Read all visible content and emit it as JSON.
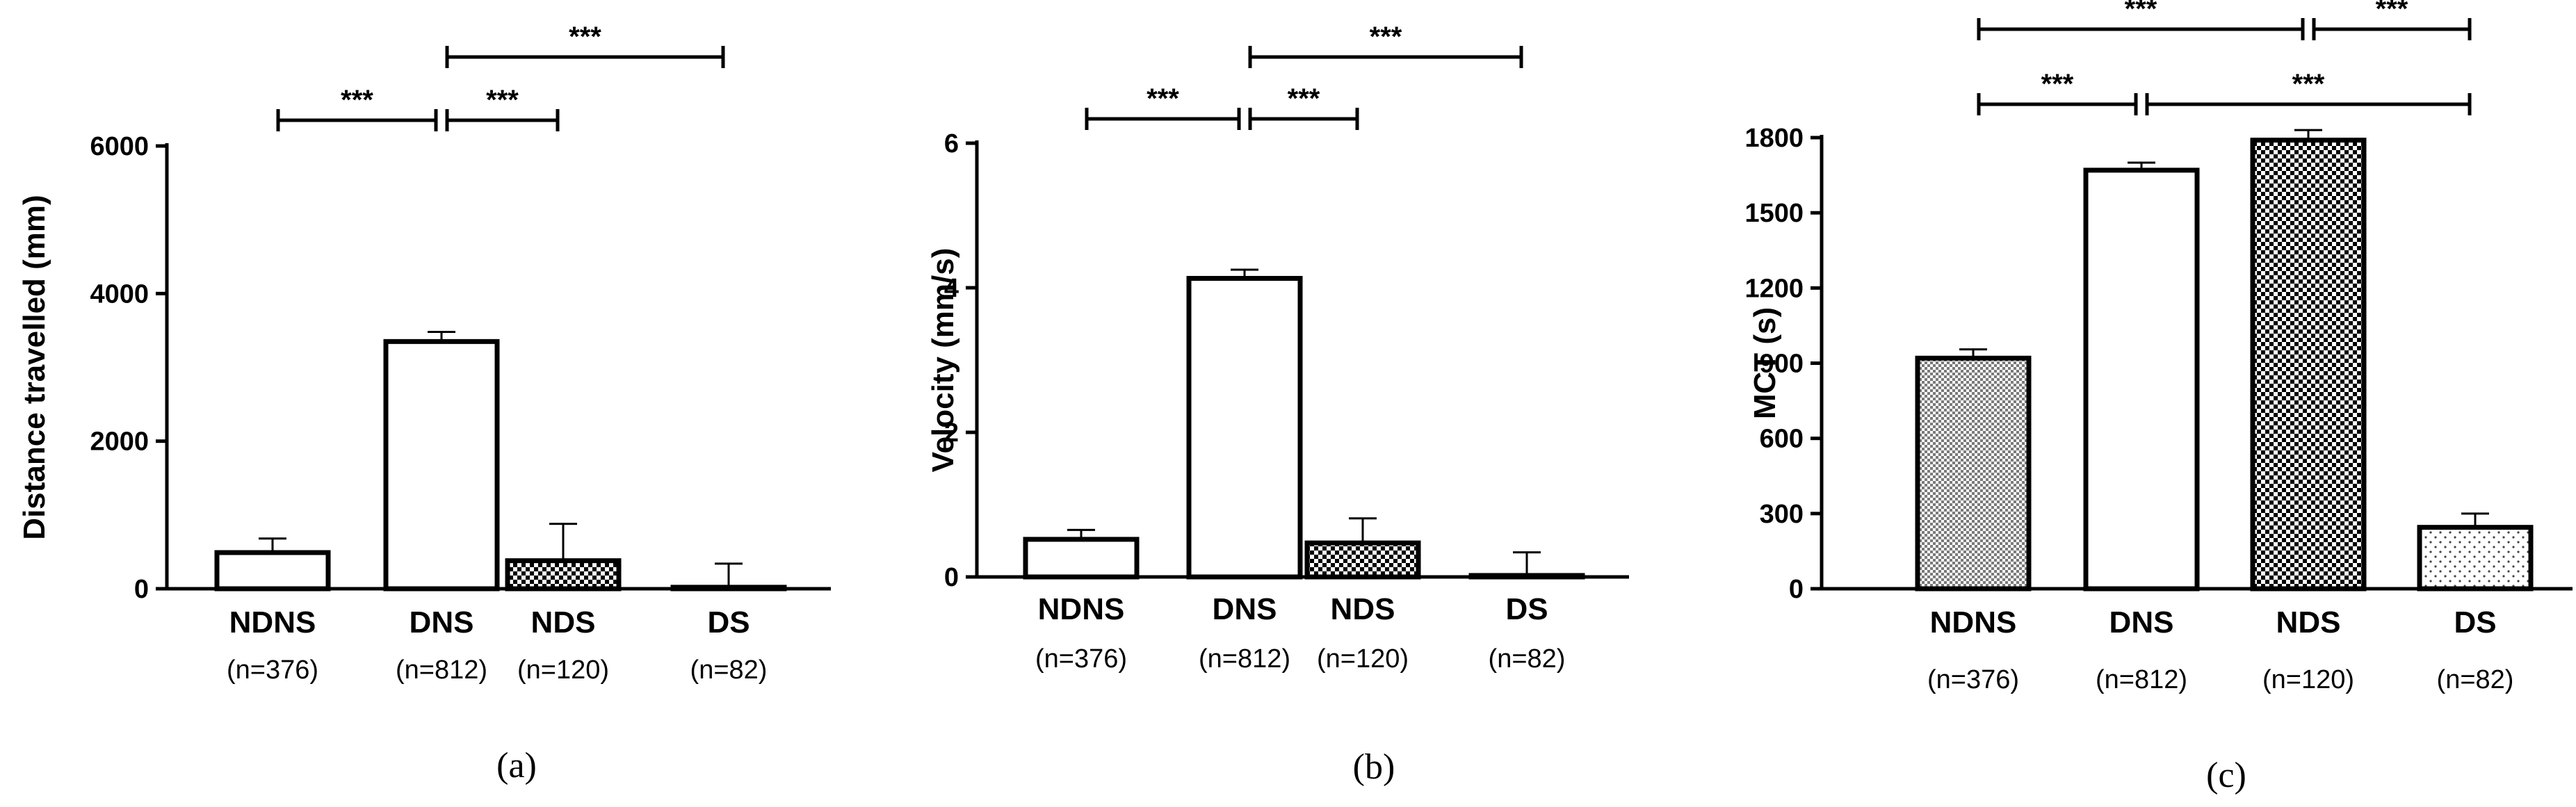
{
  "chart_data": [
    {
      "type": "bar",
      "panel_label": "(a)",
      "ylabel": "Distance travelled (mm)",
      "ylim": [
        0,
        6000
      ],
      "yticks": [
        0,
        2000,
        4000,
        6000
      ],
      "categories": [
        "NDNS",
        "DNS",
        "NDS",
        "DS"
      ],
      "sample_sizes": [
        "(n=376)",
        "(n=812)",
        "(n=120)",
        "(n=82)"
      ],
      "values": [
        490,
        3350,
        380,
        20
      ],
      "errors": [
        190,
        130,
        500,
        320
      ],
      "fills": [
        "white",
        "white",
        "check-medium",
        "white"
      ],
      "significance": [
        {
          "from": 0,
          "to": 1,
          "label": "***",
          "level": 0
        },
        {
          "from": 1,
          "to": 2,
          "label": "***",
          "level": 0
        },
        {
          "from": 1,
          "to": 3,
          "label": "***",
          "level": 1
        }
      ]
    },
    {
      "type": "bar",
      "panel_label": "(b)",
      "ylabel": "Velocity (mm/s)",
      "ylim": [
        0,
        6
      ],
      "yticks": [
        0,
        2,
        4,
        6
      ],
      "categories": [
        "NDNS",
        "DNS",
        "NDS",
        "DS"
      ],
      "sample_sizes": [
        "(n=376)",
        "(n=812)",
        "(n=120)",
        "(n=82)"
      ],
      "values": [
        0.52,
        4.13,
        0.47,
        0.02
      ],
      "errors": [
        0.13,
        0.12,
        0.34,
        0.32
      ],
      "fills": [
        "white",
        "white",
        "check-medium",
        "white"
      ],
      "significance": [
        {
          "from": 0,
          "to": 1,
          "label": "***",
          "level": 0
        },
        {
          "from": 1,
          "to": 2,
          "label": "***",
          "level": 0
        },
        {
          "from": 1,
          "to": 3,
          "label": "***",
          "level": 1
        }
      ]
    },
    {
      "type": "bar",
      "panel_label": "(c)",
      "ylabel": "MCT (s)",
      "ylim": [
        0,
        1800
      ],
      "yticks": [
        0,
        300,
        600,
        900,
        1200,
        1500,
        1800
      ],
      "categories": [
        "NDNS",
        "DNS",
        "NDS",
        "DS"
      ],
      "sample_sizes": [
        "(n=376)",
        "(n=812)",
        "(n=120)",
        "(n=82)"
      ],
      "values": [
        920,
        1670,
        1790,
        245
      ],
      "errors": [
        35,
        30,
        40,
        55
      ],
      "fills": [
        "check-fine",
        "white",
        "check-medium",
        "dots"
      ],
      "significance": [
        {
          "from": 0,
          "to": 1,
          "label": "***",
          "level": 0
        },
        {
          "from": 1,
          "to": 3,
          "label": "***",
          "level": 0
        },
        {
          "from": 0,
          "to": 2,
          "label": "***",
          "level": 1
        },
        {
          "from": 2,
          "to": 3,
          "label": "***",
          "level": 1
        }
      ]
    }
  ]
}
